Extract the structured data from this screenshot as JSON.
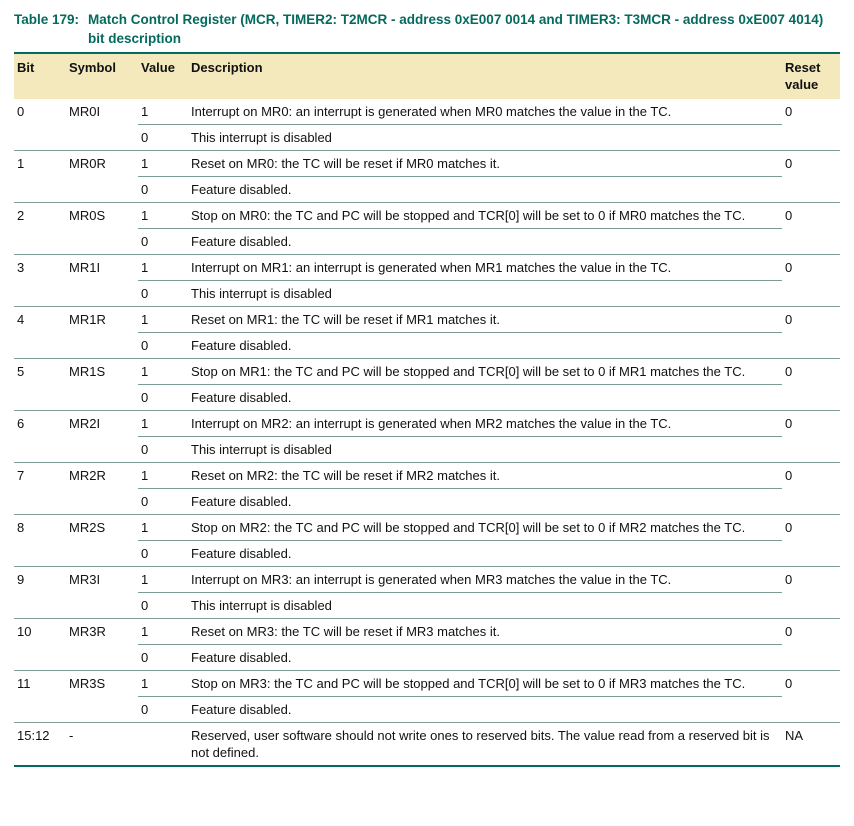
{
  "title": {
    "label": "Table 179:",
    "text": "Match Control Register (MCR, TIMER2: T2MCR - address 0xE007 0014 and TIMER3: T3MCR - address 0xE007 4014) bit description"
  },
  "colors": {
    "title_accent": "#046a5e",
    "header_background": "#f4e8bd",
    "rule_dark": "#046a5e",
    "rule_light": "#7d9c97",
    "body_text": "#111111"
  },
  "table": {
    "headers": {
      "bit": "Bit",
      "symbol": "Symbol",
      "value": "Value",
      "description": "Description",
      "reset": "Reset value"
    },
    "rows": [
      {
        "bit": "0",
        "symbol": "MR0I",
        "reset": "0",
        "entries": [
          {
            "value": "1",
            "description": "Interrupt on MR0: an interrupt is generated when MR0 matches the value in the TC."
          },
          {
            "value": "0",
            "description": "This interrupt is disabled"
          }
        ]
      },
      {
        "bit": "1",
        "symbol": "MR0R",
        "reset": "0",
        "entries": [
          {
            "value": "1",
            "description": "Reset on MR0: the TC will be reset if MR0 matches it."
          },
          {
            "value": "0",
            "description": "Feature disabled."
          }
        ]
      },
      {
        "bit": "2",
        "symbol": "MR0S",
        "reset": "0",
        "entries": [
          {
            "value": "1",
            "description": "Stop on MR0: the TC and PC will be stopped and TCR[0] will be set to 0 if MR0 matches the TC."
          },
          {
            "value": "0",
            "description": "Feature disabled."
          }
        ]
      },
      {
        "bit": "3",
        "symbol": "MR1I",
        "reset": "0",
        "entries": [
          {
            "value": "1",
            "description": "Interrupt on MR1: an interrupt is generated when MR1 matches the value in the TC."
          },
          {
            "value": "0",
            "description": "This interrupt is disabled"
          }
        ]
      },
      {
        "bit": "4",
        "symbol": "MR1R",
        "reset": "0",
        "entries": [
          {
            "value": "1",
            "description": "Reset on MR1: the TC will be reset if MR1 matches it."
          },
          {
            "value": "0",
            "description": "Feature disabled."
          }
        ]
      },
      {
        "bit": "5",
        "symbol": "MR1S",
        "reset": "0",
        "entries": [
          {
            "value": "1",
            "description": "Stop on MR1: the TC and PC will be stopped and TCR[0] will be set to 0 if MR1 matches the TC."
          },
          {
            "value": "0",
            "description": "Feature disabled."
          }
        ]
      },
      {
        "bit": "6",
        "symbol": "MR2I",
        "reset": "0",
        "entries": [
          {
            "value": "1",
            "description": "Interrupt on MR2: an interrupt is generated when MR2 matches the value in the TC."
          },
          {
            "value": "0",
            "description": "This interrupt is disabled"
          }
        ]
      },
      {
        "bit": "7",
        "symbol": "MR2R",
        "reset": "0",
        "entries": [
          {
            "value": "1",
            "description": "Reset on MR2: the TC will be reset if MR2 matches it."
          },
          {
            "value": "0",
            "description": "Feature disabled."
          }
        ]
      },
      {
        "bit": "8",
        "symbol": "MR2S",
        "reset": "0",
        "entries": [
          {
            "value": "1",
            "description": "Stop on MR2: the TC and PC will be stopped and TCR[0] will be set to 0 if MR2 matches the TC."
          },
          {
            "value": "0",
            "description": "Feature disabled."
          }
        ]
      },
      {
        "bit": "9",
        "symbol": "MR3I",
        "reset": "0",
        "entries": [
          {
            "value": "1",
            "description": "Interrupt on MR3: an interrupt is generated when MR3 matches the value in the TC."
          },
          {
            "value": "0",
            "description": "This interrupt is disabled"
          }
        ]
      },
      {
        "bit": "10",
        "symbol": "MR3R",
        "reset": "0",
        "entries": [
          {
            "value": "1",
            "description": "Reset on MR3: the TC will be reset if MR3 matches it."
          },
          {
            "value": "0",
            "description": "Feature disabled."
          }
        ]
      },
      {
        "bit": "11",
        "symbol": "MR3S",
        "reset": "0",
        "entries": [
          {
            "value": "1",
            "description": "Stop on MR3: the TC and PC will be stopped and TCR[0] will be set to 0 if MR3 matches the TC."
          },
          {
            "value": "0",
            "description": "Feature disabled."
          }
        ]
      },
      {
        "bit": "15:12",
        "symbol": "-",
        "reset": "NA",
        "entries": [
          {
            "value": "",
            "description": "Reserved, user software should not write ones to reserved bits. The value read from a reserved bit is not defined."
          }
        ]
      }
    ]
  }
}
